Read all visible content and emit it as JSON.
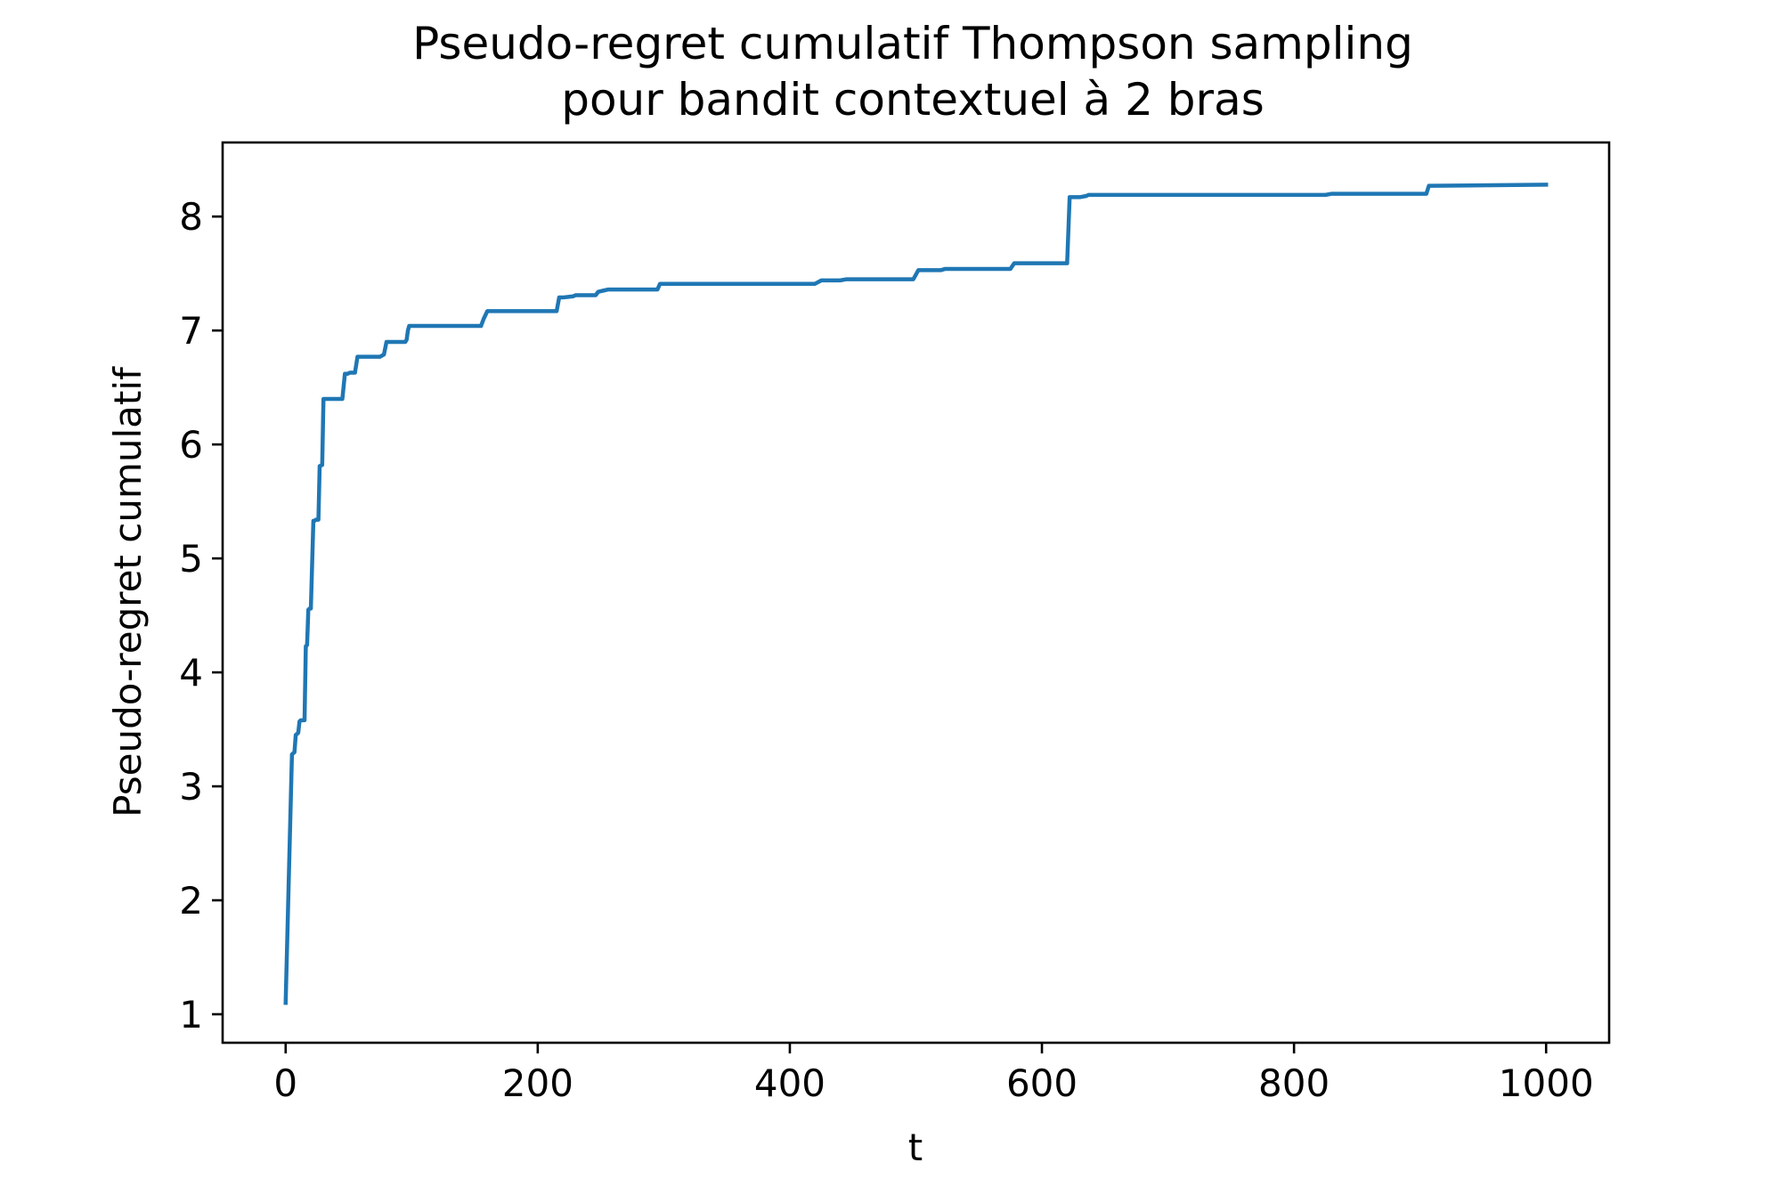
{
  "chart_data": {
    "type": "line",
    "title": [
      "Pseudo-regret cumulatif Thompson sampling",
      "pour bandit contextuel à 2 bras"
    ],
    "xlabel": "t",
    "ylabel": "Pseudo-regret cumulatif",
    "xlim": [
      -50,
      1050
    ],
    "ylim": [
      0.75,
      8.65
    ],
    "xticks": [
      0,
      200,
      400,
      600,
      800,
      1000
    ],
    "yticks": [
      1,
      2,
      3,
      4,
      5,
      6,
      7,
      8
    ],
    "xtick_labels": [
      "0",
      "200",
      "400",
      "600",
      "800",
      "1000"
    ],
    "ytick_labels": [
      "1",
      "2",
      "3",
      "4",
      "5",
      "6",
      "7",
      "8"
    ],
    "grid": false,
    "legend": false,
    "color": "#1f77b4",
    "series": [
      {
        "x": [
          0,
          5,
          6,
          7,
          8,
          10,
          11,
          12,
          13,
          15,
          16,
          17,
          18,
          19,
          20,
          22,
          23,
          24,
          26,
          27,
          29,
          30,
          32,
          33,
          34,
          35,
          36,
          45,
          47,
          49,
          51,
          55,
          57,
          61,
          65,
          75,
          78,
          80,
          95,
          96,
          97,
          98,
          99,
          100,
          130,
          155,
          157,
          160,
          162,
          165,
          200,
          215,
          217,
          220,
          228,
          230,
          243,
          246,
          248,
          252,
          256,
          290,
          295,
          297,
          300,
          420,
          425,
          440,
          445,
          450,
          498,
          502,
          506,
          520,
          523,
          525,
          570,
          575,
          578,
          580,
          618,
          620,
          622,
          625,
          630,
          635,
          637,
          640,
          700,
          800,
          825,
          830,
          850,
          905,
          907,
          910,
          1000
        ],
        "y": [
          1.1,
          3.28,
          3.29,
          3.3,
          3.45,
          3.47,
          3.57,
          3.58,
          3.58,
          3.58,
          4.23,
          4.24,
          4.55,
          4.56,
          4.56,
          5.33,
          5.33,
          5.34,
          5.34,
          5.81,
          5.82,
          6.4,
          6.4,
          6.4,
          6.4,
          6.4,
          6.4,
          6.4,
          6.62,
          6.62,
          6.63,
          6.63,
          6.77,
          6.77,
          6.77,
          6.77,
          6.79,
          6.9,
          6.9,
          6.92,
          7.0,
          7.04,
          7.04,
          7.04,
          7.04,
          7.04,
          7.1,
          7.17,
          7.17,
          7.17,
          7.17,
          7.17,
          7.29,
          7.29,
          7.3,
          7.31,
          7.31,
          7.31,
          7.34,
          7.35,
          7.36,
          7.36,
          7.36,
          7.41,
          7.41,
          7.41,
          7.44,
          7.44,
          7.45,
          7.45,
          7.45,
          7.53,
          7.53,
          7.53,
          7.54,
          7.54,
          7.54,
          7.54,
          7.59,
          7.59,
          7.59,
          7.59,
          8.17,
          8.17,
          8.17,
          8.18,
          8.19,
          8.19,
          8.19,
          8.19,
          8.19,
          8.2,
          8.2,
          8.2,
          8.27,
          8.27,
          8.28
        ]
      }
    ]
  }
}
